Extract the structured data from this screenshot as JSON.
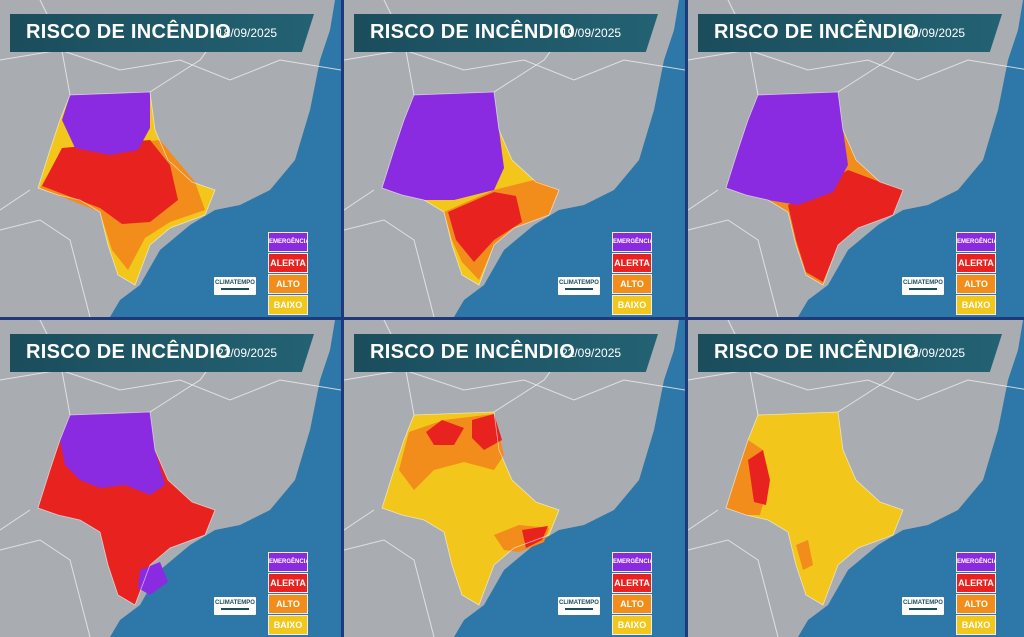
{
  "panel_title": "RISCO DE INCÊNDIO",
  "brand": "CLIMATEMPO",
  "legend": [
    {
      "label": "EMERGÊNCIA",
      "color": "#8a2be2"
    },
    {
      "label": "ALERTA",
      "color": "#e8231f"
    },
    {
      "label": "ALTO",
      "color": "#f28c1a"
    },
    {
      "label": "BAIXO",
      "color": "#f2c61a"
    }
  ],
  "colors": {
    "ocean": "#2d78a8",
    "land": "#a9adb2",
    "borders": "#eeeeee",
    "banner": "#1b4d5c",
    "frame": "#1f3a7a"
  },
  "panels": [
    {
      "date": "18/09/2025",
      "dominant_risk": "EMERGÊNCIA"
    },
    {
      "date": "19/09/2025",
      "dominant_risk": "EMERGÊNCIA"
    },
    {
      "date": "20/09/2025",
      "dominant_risk": "EMERGÊNCIA"
    },
    {
      "date": "21/09/2025",
      "dominant_risk": "EMERGÊNCIA"
    },
    {
      "date": "22/09/2025",
      "dominant_risk": "ALTO"
    },
    {
      "date": "23/09/2025",
      "dominant_risk": "BAIXO"
    }
  ]
}
